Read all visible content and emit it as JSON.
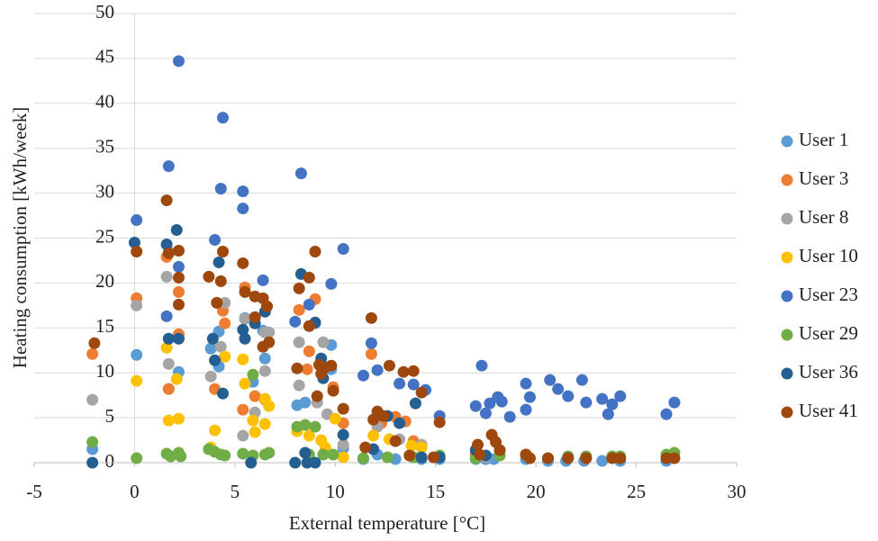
{
  "chart_data": {
    "type": "scatter",
    "x_label": "External temperature [°C]",
    "y_label": "Heating consumption [kWh/week]",
    "xlim": [
      -5,
      30
    ],
    "xticks": [
      -5,
      0,
      5,
      10,
      15,
      20,
      25,
      30
    ],
    "ylim": [
      0,
      50
    ],
    "yticks": [
      0,
      5,
      10,
      15,
      20,
      25,
      30,
      35,
      40,
      45,
      50
    ],
    "grid": true,
    "legend": "right",
    "series": [
      {
        "name": "User 1",
        "color": "#5b9bd5",
        "x": [
          -2.1,
          0.1,
          1.7,
          2.2,
          3.8,
          4.2,
          4.2,
          5.5,
          5.9,
          6.4,
          6.5,
          8.1,
          8.5,
          9.8,
          9.8,
          10.4,
          11.4,
          12.1,
          13.0,
          13.9,
          14.3,
          15.2,
          17.0,
          17.5,
          17.9,
          19.5,
          20.6,
          21.5,
          22.4,
          23.3,
          24.2,
          26.5
        ],
        "y": [
          1.5,
          12.0,
          8.2,
          10.1,
          12.7,
          14.6,
          10.7,
          16.1,
          9.0,
          14.7,
          11.6,
          6.4,
          6.7,
          10.4,
          13.1,
          1.6,
          0.4,
          0.9,
          0.4,
          0.6,
          0.4,
          0.4,
          0.4,
          0.4,
          0.4,
          0.4,
          0.2,
          0.2,
          0.2,
          0.2,
          0.2,
          0.2
        ]
      },
      {
        "name": "User 3",
        "color": "#ed7d31",
        "x": [
          -2.1,
          0.1,
          1.6,
          1.7,
          2.2,
          2.2,
          4.0,
          4.4,
          4.5,
          5.5,
          5.4,
          6.0,
          6.5,
          8.2,
          9.0,
          8.6,
          8.7,
          9.9,
          10.4,
          11.8,
          12.3,
          13.0,
          13.5,
          13.9,
          17.0
        ],
        "y": [
          12.1,
          18.3,
          22.9,
          8.2,
          19.0,
          14.3,
          8.2,
          16.9,
          15.5,
          19.5,
          5.9,
          7.4,
          7.0,
          17.0,
          18.2,
          10.4,
          12.4,
          8.4,
          4.4,
          12.1,
          4.4,
          5.1,
          4.6,
          2.4,
          0.9
        ]
      },
      {
        "name": "User 8",
        "color": "#a5a5a5",
        "x": [
          -2.1,
          0.1,
          1.7,
          1.6,
          1.7,
          3.8,
          4.3,
          4.5,
          5.5,
          5.4,
          6.0,
          6.5,
          6.5,
          6.7,
          8.2,
          8.2,
          9.0,
          9.4,
          9.1,
          9.6,
          10.4,
          12.1,
          13.2,
          14.3,
          17.5
        ],
        "y": [
          7.0,
          17.5,
          23.5,
          20.7,
          11.0,
          9.6,
          12.9,
          17.8,
          16.0,
          3.0,
          5.6,
          14.5,
          10.2,
          14.5,
          13.4,
          8.6,
          15.5,
          13.4,
          6.7,
          5.4,
          2.0,
          4.0,
          2.6,
          2.0,
          0.6
        ]
      },
      {
        "name": "User 10",
        "color": "#ffc000",
        "x": [
          0.1,
          1.6,
          1.7,
          2.2,
          2.1,
          3.8,
          4.0,
          4.5,
          5.5,
          5.4,
          5.9,
          6.0,
          6.5,
          6.7,
          6.5,
          8.1,
          8.7,
          9.3,
          9.5,
          10.0,
          10.4,
          11.9,
          12.7,
          13.8,
          14.3
        ],
        "y": [
          9.1,
          12.8,
          4.7,
          4.9,
          9.3,
          1.7,
          3.6,
          11.8,
          8.8,
          11.5,
          4.7,
          3.4,
          7.1,
          6.3,
          4.3,
          3.5,
          3.0,
          2.5,
          1.7,
          4.9,
          0.6,
          3.0,
          2.6,
          1.9,
          1.7
        ]
      },
      {
        "name": "User 23",
        "color": "#4472c4",
        "x": [
          0.1,
          1.7,
          2.2,
          2.2,
          1.6,
          4.4,
          4.3,
          4.0,
          5.4,
          5.4,
          6.4,
          8.3,
          10.4,
          9.8,
          8.0,
          8.7,
          11.8,
          12.1,
          11.4,
          13.2,
          13.9,
          14.5,
          15.2,
          17.3,
          17.0,
          17.5,
          17.7,
          18.1,
          18.3,
          18.7,
          19.5,
          19.5,
          19.7,
          20.7,
          21.1,
          21.6,
          22.3,
          22.5,
          23.3,
          23.6,
          23.8,
          24.2,
          26.5,
          26.9
        ],
        "y": [
          27.0,
          33.0,
          44.7,
          21.8,
          16.3,
          38.4,
          30.5,
          24.8,
          30.2,
          28.3,
          20.3,
          32.2,
          23.8,
          19.9,
          15.7,
          17.6,
          13.3,
          10.3,
          9.7,
          8.8,
          8.7,
          8.1,
          5.2,
          10.8,
          6.3,
          5.5,
          6.6,
          7.3,
          6.8,
          5.1,
          5.9,
          8.8,
          7.3,
          9.2,
          8.2,
          7.4,
          9.2,
          6.7,
          7.1,
          5.4,
          6.5,
          7.4,
          5.4,
          6.7
        ]
      },
      {
        "name": "User 29",
        "color": "#70ad47",
        "x": [
          -2.1,
          0.1,
          1.6,
          1.8,
          2.2,
          2.3,
          3.7,
          4.0,
          4.3,
          4.5,
          5.4,
          5.9,
          5.9,
          6.5,
          6.7,
          8.1,
          8.5,
          9.0,
          8.7,
          9.4,
          9.9,
          11.4,
          12.6,
          13.9,
          15.2,
          17.0,
          18.2,
          19.5,
          20.6,
          21.6,
          22.5,
          23.8,
          24.2,
          26.5,
          26.9
        ],
        "y": [
          2.3,
          0.5,
          1.0,
          0.7,
          1.1,
          0.7,
          1.5,
          1.2,
          0.9,
          0.8,
          1.0,
          9.8,
          0.8,
          0.9,
          1.1,
          4.0,
          4.2,
          4.0,
          0.9,
          0.9,
          0.9,
          0.5,
          0.6,
          0.6,
          0.8,
          0.5,
          0.8,
          0.9,
          0.5,
          0.7,
          0.7,
          0.7,
          0.7,
          0.9,
          1.1
        ]
      },
      {
        "name": "User 36",
        "color": "#255e91",
        "x": [
          0.0,
          -2.1,
          1.6,
          2.1,
          1.7,
          2.2,
          4.2,
          3.9,
          4.0,
          4.4,
          5.4,
          5.5,
          6.0,
          6.5,
          5.8,
          8.3,
          9.0,
          9.3,
          9.4,
          8.5,
          8.0,
          8.6,
          9.0,
          10.4,
          11.9,
          12.6,
          13.2,
          14.0,
          14.3,
          15.2,
          17.0,
          17.5
        ],
        "y": [
          24.5,
          0.0,
          24.3,
          25.9,
          13.8,
          13.8,
          22.3,
          13.8,
          11.4,
          7.7,
          14.8,
          13.8,
          15.5,
          16.8,
          0.0,
          21.0,
          15.6,
          11.6,
          9.4,
          1.1,
          0.0,
          0.0,
          0.0,
          3.1,
          1.5,
          5.2,
          4.4,
          6.6,
          0.6,
          0.6,
          1.4,
          0.8
        ]
      },
      {
        "name": "User 41",
        "color": "#9e480e",
        "x": [
          -2.0,
          0.1,
          1.6,
          1.7,
          2.2,
          2.2,
          2.2,
          3.7,
          4.1,
          4.4,
          4.3,
          5.4,
          5.5,
          6.0,
          6.0,
          6.4,
          6.6,
          6.4,
          6.7,
          8.2,
          8.7,
          9.0,
          8.1,
          8.7,
          9.2,
          9.5,
          9.8,
          9.1,
          9.3,
          9.9,
          10.4,
          11.5,
          11.8,
          11.9,
          12.1,
          12.4,
          12.7,
          13.0,
          13.4,
          13.9,
          14.3,
          15.2,
          13.7,
          14.9,
          17.1,
          17.2,
          17.8,
          18.0,
          18.2,
          19.5,
          19.7,
          20.6,
          21.6,
          22.5,
          23.8,
          24.2,
          26.5,
          26.9
        ],
        "y": [
          13.3,
          23.5,
          29.2,
          23.3,
          23.6,
          20.6,
          17.6,
          20.7,
          17.8,
          23.5,
          20.2,
          22.2,
          19.0,
          18.5,
          16.2,
          18.3,
          17.4,
          12.9,
          13.4,
          19.4,
          20.6,
          23.5,
          10.5,
          15.2,
          10.9,
          10.6,
          10.8,
          7.4,
          9.9,
          8.0,
          6.0,
          1.7,
          16.1,
          4.8,
          5.7,
          5.2,
          10.8,
          2.4,
          10.1,
          10.2,
          7.8,
          4.5,
          0.8,
          0.6,
          2.0,
          0.9,
          3.1,
          2.3,
          1.4,
          0.9,
          0.5,
          0.5,
          0.5,
          0.5,
          0.5,
          0.5,
          0.5,
          0.5
        ]
      }
    ]
  }
}
